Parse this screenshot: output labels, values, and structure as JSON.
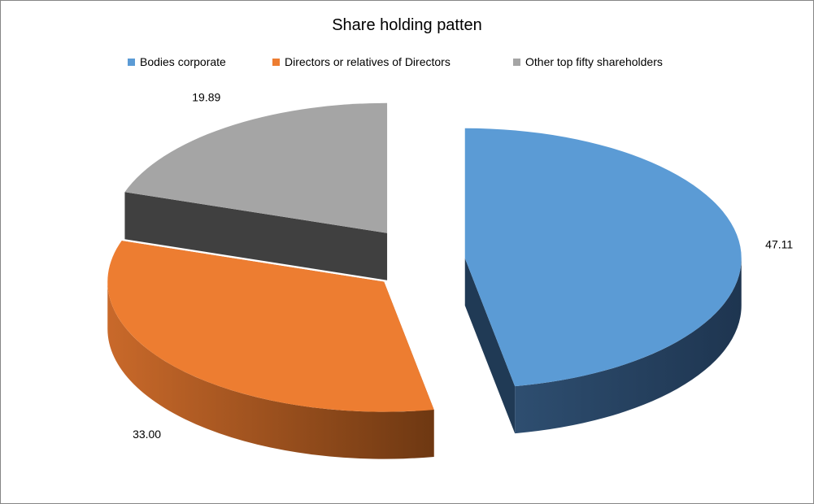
{
  "chart_data": {
    "type": "pie",
    "title": "Share holding patten",
    "legend_position": "top",
    "three_d": true,
    "exploded": true,
    "series": [
      {
        "name": "Bodies corporate",
        "value": 47.11,
        "label": "47.11",
        "color": "#5B9BD5",
        "side_color": "#203A55"
      },
      {
        "name": "Directors or relatives of Directors",
        "value": 33.0,
        "label": "33.00",
        "color": "#ED7D31",
        "side_color": "#B05A20"
      },
      {
        "name": "Other top fifty shareholders",
        "value": 19.89,
        "label": "19.89",
        "color": "#A5A5A5",
        "side_color": "#404040"
      }
    ]
  }
}
